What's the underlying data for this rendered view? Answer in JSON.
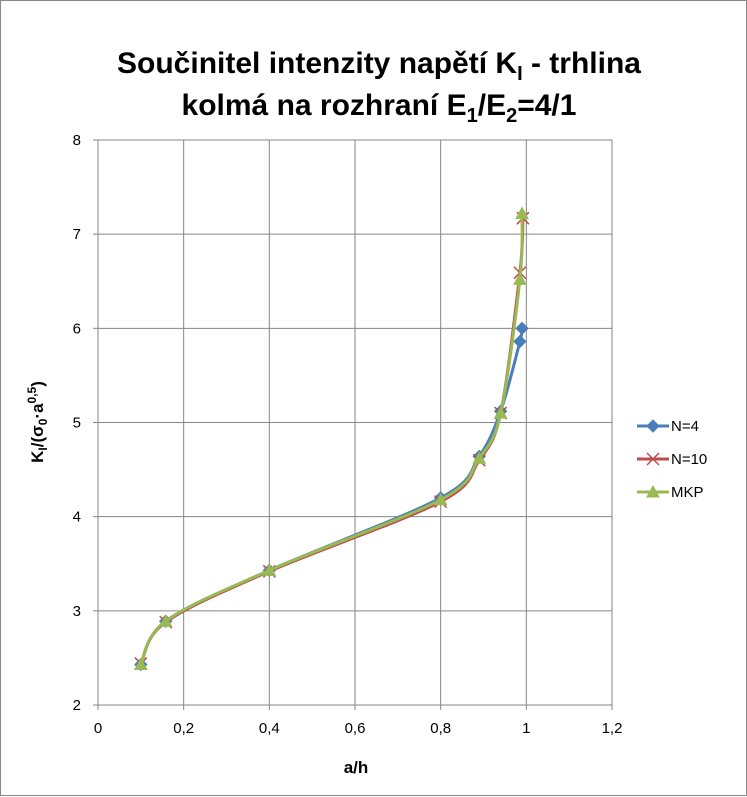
{
  "chart_data": {
    "type": "line",
    "title_line1": "Součinitel intenzity napětí K",
    "title_sub1": "I",
    "title_line1_rest": " - trhlina",
    "title_line2_a": "kolmá na rozhraní E",
    "title_sub2a": "1",
    "title_line2_b": "/E",
    "title_sub2b": "2",
    "title_line2_c": "=4/1",
    "xlabel": "a/h",
    "ylabel_parts": {
      "k": "K",
      "ksub": "I",
      "open": "/(σ",
      "sigsub": "0",
      "dot": "·a",
      "sup": "0,5",
      "close": ")"
    },
    "xlim": [
      0,
      1.2
    ],
    "ylim": [
      2,
      8
    ],
    "xticks": [
      0,
      0.2,
      0.4,
      0.6,
      0.8,
      1,
      1.2
    ],
    "xtick_labels": [
      "0",
      "0,2",
      "0,4",
      "0,6",
      "0,8",
      "1",
      "1,2"
    ],
    "yticks": [
      2,
      3,
      4,
      5,
      6,
      7,
      8
    ],
    "ytick_labels": [
      "2",
      "3",
      "4",
      "5",
      "6",
      "7",
      "8"
    ],
    "grid": true,
    "legend_position": "right",
    "series": [
      {
        "name": "N=4",
        "color": "#4a7ebb",
        "marker": "diamond",
        "x": [
          0.1,
          0.158,
          0.4,
          0.8,
          0.89,
          0.94,
          0.985,
          0.99
        ],
        "y": [
          2.43,
          2.89,
          3.43,
          4.2,
          4.64,
          5.12,
          5.86,
          6.0
        ]
      },
      {
        "name": "N=10",
        "color": "#be4b48",
        "marker": "x",
        "x": [
          0.1,
          0.158,
          0.4,
          0.8,
          0.89,
          0.94,
          0.985,
          0.992
        ],
        "y": [
          2.44,
          2.88,
          3.42,
          4.16,
          4.6,
          5.1,
          6.59,
          7.17
        ]
      },
      {
        "name": "MKP",
        "color": "#98b954",
        "marker": "triangle",
        "x": [
          0.1,
          0.158,
          0.4,
          0.8,
          0.89,
          0.94,
          0.985,
          0.99
        ],
        "y": [
          2.43,
          2.89,
          3.43,
          4.18,
          4.62,
          5.1,
          6.52,
          7.22
        ]
      }
    ]
  }
}
